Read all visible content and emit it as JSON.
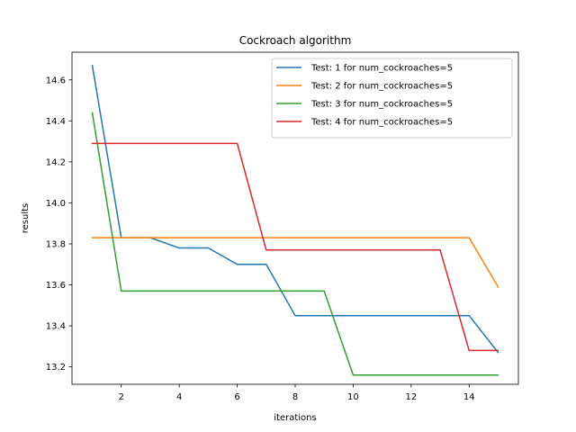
{
  "chart_data": {
    "type": "line",
    "title": "Cockroach algorithm",
    "xlabel": "iterations",
    "ylabel": "results",
    "xlim": [
      0.3,
      15.7
    ],
    "ylim": [
      13.115,
      14.735
    ],
    "xticks": [
      2,
      4,
      6,
      8,
      10,
      12,
      14
    ],
    "yticks": [
      13.2,
      13.4,
      13.6,
      13.8,
      14.0,
      14.2,
      14.4,
      14.6
    ],
    "grid": false,
    "legend_position": "top-right",
    "x": [
      1,
      2,
      3,
      4,
      5,
      6,
      7,
      8,
      9,
      10,
      11,
      12,
      13,
      14,
      15
    ],
    "series": [
      {
        "name": "Test: 1 for num_cockroaches=5",
        "color": "#1f77b4",
        "values": [
          14.67,
          13.83,
          13.83,
          13.78,
          13.78,
          13.7,
          13.7,
          13.45,
          13.45,
          13.45,
          13.45,
          13.45,
          13.45,
          13.45,
          13.27
        ]
      },
      {
        "name": "Test: 2 for num_cockroaches=5",
        "color": "#ff7f0e",
        "values": [
          13.83,
          13.83,
          13.83,
          13.83,
          13.83,
          13.83,
          13.83,
          13.83,
          13.83,
          13.83,
          13.83,
          13.83,
          13.83,
          13.83,
          13.59
        ]
      },
      {
        "name": "Test: 3 for num_cockroaches=5",
        "color": "#2ca02c",
        "values": [
          14.44,
          13.57,
          13.57,
          13.57,
          13.57,
          13.57,
          13.57,
          13.57,
          13.57,
          13.16,
          13.16,
          13.16,
          13.16,
          13.16,
          13.16
        ]
      },
      {
        "name": "Test: 4 for num_cockroaches=5",
        "color": "#d62728",
        "values": [
          14.29,
          14.29,
          14.29,
          14.29,
          14.29,
          14.29,
          13.77,
          13.77,
          13.77,
          13.77,
          13.77,
          13.77,
          13.77,
          13.28,
          13.28
        ]
      }
    ]
  }
}
